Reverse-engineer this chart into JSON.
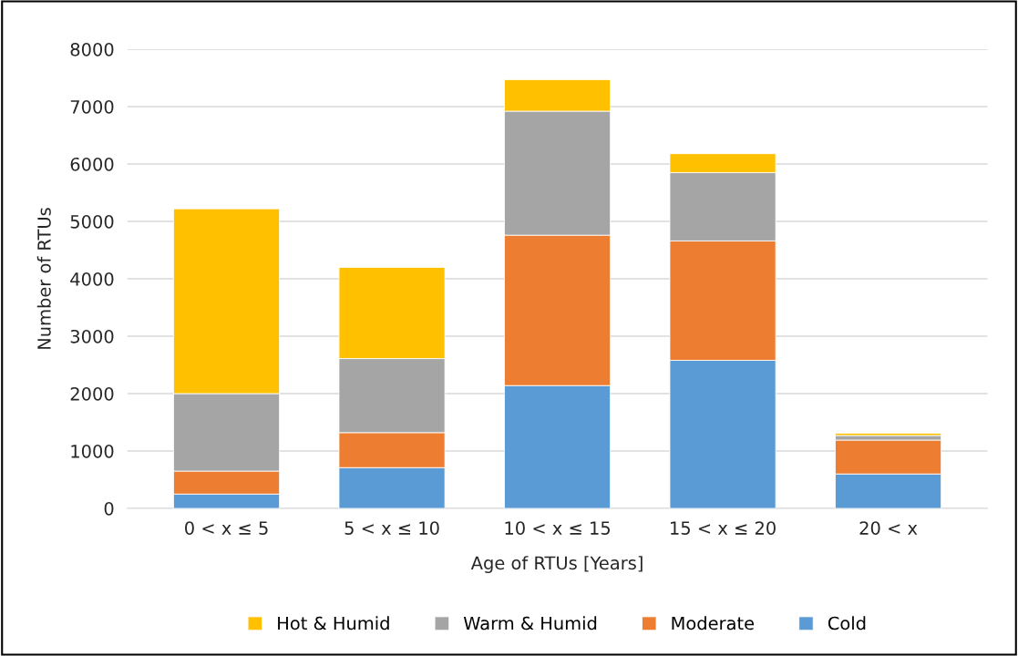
{
  "chart_data": {
    "type": "bar",
    "stacked": true,
    "xlabel": "Age of RTUs [Years]",
    "ylabel": "Number of RTUs",
    "categories": [
      "0 < x ≤ 5",
      "5 < x ≤ 10",
      "10 < x ≤ 15",
      "15 < x ≤ 20",
      "20 < x"
    ],
    "series": [
      {
        "name": "Cold",
        "color": "#5b9bd5",
        "values": [
          250,
          710,
          2140,
          2580,
          600
        ]
      },
      {
        "name": "Moderate",
        "color": "#ed7d31",
        "values": [
          400,
          610,
          2620,
          2080,
          590
        ]
      },
      {
        "name": "Warm & Humid",
        "color": "#a5a5a5",
        "values": [
          1350,
          1290,
          2160,
          1190,
          80
        ]
      },
      {
        "name": "Hot & Humid",
        "color": "#ffc000",
        "values": [
          3220,
          1590,
          550,
          330,
          40
        ]
      }
    ],
    "ylim": [
      0,
      8000
    ],
    "yticks": [
      0,
      1000,
      2000,
      3000,
      4000,
      5000,
      6000,
      7000,
      8000
    ],
    "grid": "y",
    "legend": "bottom"
  }
}
